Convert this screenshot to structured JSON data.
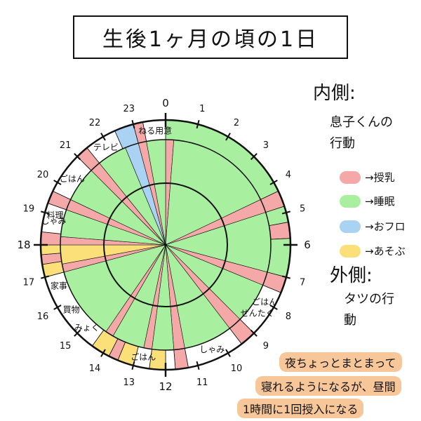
{
  "title": "生後1ヶ月の頃の1日",
  "colors": {
    "feeding": "#f4a9a8",
    "sleep": "#a8f0a0",
    "bath": "#a9d2f3",
    "play": "#fbe07a",
    "none": "#ffffff",
    "ink": "#111111",
    "highlight": "#f7c79a"
  },
  "legend": {
    "inner_heading": "内側:",
    "inner_subject": "息子くんの行動",
    "items": [
      {
        "key": "feeding",
        "label": "→授乳"
      },
      {
        "key": "sleep",
        "label": "→睡眠"
      },
      {
        "key": "bath",
        "label": "→おフロ"
      },
      {
        "key": "play",
        "label": "→あそぶ"
      }
    ],
    "outer_heading": "外側:",
    "outer_subject": "タツの行動"
  },
  "hours": [
    "0",
    "1",
    "2",
    "3",
    "4",
    "5",
    "6",
    "7",
    "8",
    "9",
    "10",
    "11",
    "12",
    "13",
    "14",
    "15",
    "16",
    "17",
    "18",
    "19",
    "20",
    "21",
    "22",
    "23"
  ],
  "outer_ring": [
    {
      "start": 0.0,
      "end": 4.3,
      "fill": "sleep"
    },
    {
      "start": 4.3,
      "end": 4.8,
      "fill": "feeding"
    },
    {
      "start": 4.8,
      "end": 5.3,
      "fill": "sleep"
    },
    {
      "start": 5.3,
      "end": 5.8,
      "fill": "feeding"
    },
    {
      "start": 5.8,
      "end": 7.0,
      "fill": "sleep"
    },
    {
      "start": 7.0,
      "end": 7.5,
      "fill": "feeding"
    },
    {
      "start": 7.5,
      "end": 9.0,
      "fill": "none"
    },
    {
      "start": 9.0,
      "end": 9.5,
      "fill": "feeding"
    },
    {
      "start": 9.5,
      "end": 11.3,
      "fill": "none"
    },
    {
      "start": 11.3,
      "end": 11.7,
      "fill": "feeding"
    },
    {
      "start": 11.7,
      "end": 12.0,
      "fill": "none"
    },
    {
      "start": 12.0,
      "end": 12.5,
      "fill": "play"
    },
    {
      "start": 12.5,
      "end": 13.0,
      "fill": "none"
    },
    {
      "start": 13.0,
      "end": 13.5,
      "fill": "play"
    },
    {
      "start": 13.5,
      "end": 13.8,
      "fill": "feeding"
    },
    {
      "start": 13.8,
      "end": 14.4,
      "fill": "play"
    },
    {
      "start": 14.4,
      "end": 17.0,
      "fill": "none"
    },
    {
      "start": 17.0,
      "end": 17.4,
      "fill": "play"
    },
    {
      "start": 17.4,
      "end": 17.7,
      "fill": "feeding"
    },
    {
      "start": 17.7,
      "end": 18.0,
      "fill": "play"
    },
    {
      "start": 18.0,
      "end": 18.4,
      "fill": "feeding"
    },
    {
      "start": 18.4,
      "end": 19.3,
      "fill": "none"
    },
    {
      "start": 19.3,
      "end": 19.7,
      "fill": "feeding"
    },
    {
      "start": 19.7,
      "end": 21.0,
      "fill": "none"
    },
    {
      "start": 21.0,
      "end": 21.4,
      "fill": "feeding"
    },
    {
      "start": 21.4,
      "end": 22.4,
      "fill": "none"
    },
    {
      "start": 22.4,
      "end": 23.0,
      "fill": "bath"
    },
    {
      "start": 23.0,
      "end": 23.3,
      "fill": "feeding"
    },
    {
      "start": 23.3,
      "end": 24.0,
      "fill": "none"
    }
  ],
  "inner_ring": [
    {
      "start": 0.0,
      "end": 0.3,
      "fill": "feeding"
    },
    {
      "start": 0.3,
      "end": 4.3,
      "fill": "sleep"
    },
    {
      "start": 4.3,
      "end": 4.8,
      "fill": "feeding"
    },
    {
      "start": 4.8,
      "end": 7.0,
      "fill": "sleep"
    },
    {
      "start": 7.0,
      "end": 7.5,
      "fill": "feeding"
    },
    {
      "start": 7.5,
      "end": 9.0,
      "fill": "sleep"
    },
    {
      "start": 9.0,
      "end": 9.5,
      "fill": "feeding"
    },
    {
      "start": 9.5,
      "end": 11.3,
      "fill": "sleep"
    },
    {
      "start": 11.3,
      "end": 11.7,
      "fill": "feeding"
    },
    {
      "start": 11.7,
      "end": 12.5,
      "fill": "sleep"
    },
    {
      "start": 12.5,
      "end": 12.8,
      "fill": "feeding"
    },
    {
      "start": 12.8,
      "end": 14.0,
      "fill": "sleep"
    },
    {
      "start": 14.0,
      "end": 14.3,
      "fill": "feeding"
    },
    {
      "start": 14.3,
      "end": 17.0,
      "fill": "sleep"
    },
    {
      "start": 17.0,
      "end": 17.3,
      "fill": "feeding"
    },
    {
      "start": 17.3,
      "end": 18.0,
      "fill": "play"
    },
    {
      "start": 18.0,
      "end": 18.3,
      "fill": "feeding"
    },
    {
      "start": 18.3,
      "end": 19.3,
      "fill": "sleep"
    },
    {
      "start": 19.3,
      "end": 19.7,
      "fill": "feeding"
    },
    {
      "start": 19.7,
      "end": 21.0,
      "fill": "sleep"
    },
    {
      "start": 21.0,
      "end": 21.4,
      "fill": "feeding"
    },
    {
      "start": 21.4,
      "end": 22.5,
      "fill": "sleep"
    },
    {
      "start": 22.5,
      "end": 23.0,
      "fill": "bath"
    },
    {
      "start": 23.0,
      "end": 23.3,
      "fill": "feeding"
    },
    {
      "start": 23.3,
      "end": 24.0,
      "fill": "sleep"
    }
  ],
  "outer_labels": [
    {
      "text": "ねる用意",
      "hour": 23.65
    },
    {
      "text": "テレビ",
      "hour": 21.9
    },
    {
      "text": "ごはん",
      "hour": 20.35
    },
    {
      "text": "料理",
      "hour": 19.0
    },
    {
      "text": "しゃみ",
      "hour": 18.8
    },
    {
      "text": "家事",
      "hour": 16.6
    },
    {
      "text": "買物",
      "hour": 15.7
    },
    {
      "text": "みょく",
      "hour": 14.9
    },
    {
      "text": "ごはん",
      "hour": 12.75
    },
    {
      "text": "しゃみ",
      "hour": 10.4
    },
    {
      "text": "ごはん",
      "hour": 8.0
    },
    {
      "text": "せんたく",
      "hour": 8.45
    }
  ],
  "note": {
    "line1": "夜ちょっとまとまって",
    "line2": "寝れるようになるが、昼間",
    "line3": "1時間に1回授入になる"
  }
}
